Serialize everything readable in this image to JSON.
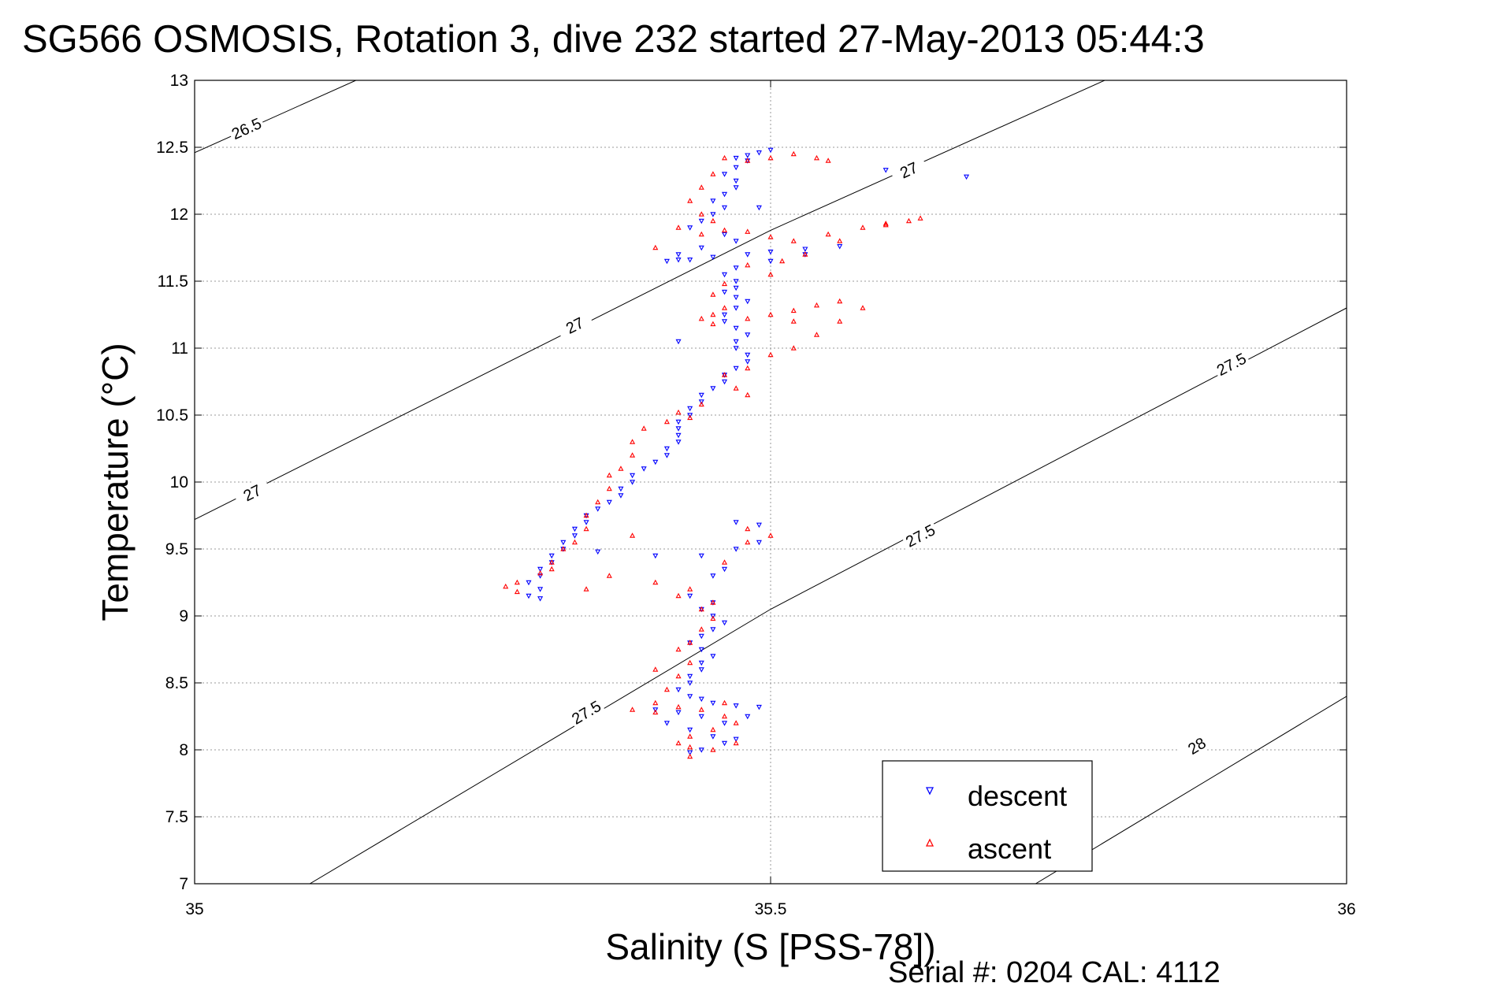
{
  "chart_data": {
    "type": "scatter",
    "title": "SG566 OSMOSIS, Rotation 3, dive 232 started 27-May-2013 05:44:3",
    "xlabel": "Salinity (S [PSS-78])",
    "ylabel": "Temperature (°C)",
    "xlim": [
      35,
      36
    ],
    "ylim": [
      7,
      13
    ],
    "x_ticks": [
      "35",
      "35.5",
      "36"
    ],
    "y_ticks": [
      "7",
      "7.5",
      "8",
      "8.5",
      "9",
      "9.5",
      "10",
      "10.5",
      "11",
      "11.5",
      "12",
      "12.5",
      "13"
    ],
    "grid": true,
    "legend_position": "bottom-right",
    "footer": "Serial #: 0204  CAL: 4112",
    "density_contours": [
      {
        "level": "26.5",
        "points": [
          [
            35.0,
            12.46
          ],
          [
            35.14,
            13.0
          ]
        ],
        "labels": [
          [
            35.045,
            12.64
          ]
        ]
      },
      {
        "level": "27",
        "points": [
          [
            35.0,
            9.72
          ],
          [
            35.5,
            11.88
          ],
          [
            35.79,
            13.0
          ]
        ],
        "labels": [
          [
            35.05,
            9.92
          ],
          [
            35.33,
            11.17
          ],
          [
            35.62,
            12.33
          ]
        ]
      },
      {
        "level": "27.5",
        "points": [
          [
            35.1,
            7.0
          ],
          [
            35.5,
            9.05
          ],
          [
            36.0,
            11.3
          ]
        ],
        "labels": [
          [
            35.34,
            8.28
          ],
          [
            35.63,
            9.6
          ],
          [
            35.9,
            10.88
          ]
        ]
      },
      {
        "level": "28",
        "points": [
          [
            35.73,
            7.0
          ],
          [
            36.0,
            8.4
          ]
        ],
        "labels": [
          [
            35.87,
            8.03
          ]
        ]
      }
    ],
    "series": [
      {
        "name": "descent",
        "marker": "triangle-down",
        "color": "#0000ff",
        "points": [
          [
            35.5,
            12.48
          ],
          [
            35.49,
            12.46
          ],
          [
            35.48,
            12.44
          ],
          [
            35.48,
            12.4
          ],
          [
            35.47,
            12.35
          ],
          [
            35.46,
            12.3
          ],
          [
            35.47,
            12.25
          ],
          [
            35.47,
            12.2
          ],
          [
            35.46,
            12.15
          ],
          [
            35.45,
            12.1
          ],
          [
            35.46,
            12.05
          ],
          [
            35.45,
            12.0
          ],
          [
            35.44,
            11.95
          ],
          [
            35.43,
            11.9
          ],
          [
            35.46,
            11.85
          ],
          [
            35.47,
            11.8
          ],
          [
            35.44,
            11.75
          ],
          [
            35.42,
            11.7
          ],
          [
            35.42,
            11.66
          ],
          [
            35.41,
            11.65
          ],
          [
            35.43,
            11.66
          ],
          [
            35.45,
            11.68
          ],
          [
            35.48,
            11.7
          ],
          [
            35.5,
            11.72
          ],
          [
            35.53,
            11.74
          ],
          [
            35.56,
            11.76
          ],
          [
            35.53,
            11.7
          ],
          [
            35.5,
            11.65
          ],
          [
            35.47,
            11.6
          ],
          [
            35.47,
            11.5
          ],
          [
            35.47,
            11.45
          ],
          [
            35.46,
            11.42
          ],
          [
            35.47,
            11.38
          ],
          [
            35.48,
            11.35
          ],
          [
            35.47,
            11.3
          ],
          [
            35.46,
            11.25
          ],
          [
            35.46,
            11.2
          ],
          [
            35.47,
            11.15
          ],
          [
            35.48,
            11.1
          ],
          [
            35.47,
            11.05
          ],
          [
            35.47,
            11.0
          ],
          [
            35.48,
            10.95
          ],
          [
            35.48,
            10.9
          ],
          [
            35.47,
            10.85
          ],
          [
            35.46,
            10.8
          ],
          [
            35.46,
            10.75
          ],
          [
            35.45,
            10.7
          ],
          [
            35.44,
            10.65
          ],
          [
            35.44,
            10.6
          ],
          [
            35.43,
            10.55
          ],
          [
            35.43,
            10.5
          ],
          [
            35.42,
            10.45
          ],
          [
            35.42,
            10.4
          ],
          [
            35.42,
            10.35
          ],
          [
            35.42,
            10.3
          ],
          [
            35.41,
            10.25
          ],
          [
            35.41,
            10.2
          ],
          [
            35.4,
            10.15
          ],
          [
            35.39,
            10.1
          ],
          [
            35.38,
            10.05
          ],
          [
            35.38,
            10.0
          ],
          [
            35.37,
            9.95
          ],
          [
            35.37,
            9.9
          ],
          [
            35.36,
            9.85
          ],
          [
            35.35,
            9.8
          ],
          [
            35.34,
            9.75
          ],
          [
            35.34,
            9.7
          ],
          [
            35.33,
            9.65
          ],
          [
            35.33,
            9.6
          ],
          [
            35.32,
            9.55
          ],
          [
            35.32,
            9.5
          ],
          [
            35.31,
            9.45
          ],
          [
            35.31,
            9.4
          ],
          [
            35.3,
            9.35
          ],
          [
            35.3,
            9.3
          ],
          [
            35.29,
            9.25
          ],
          [
            35.3,
            9.2
          ],
          [
            35.29,
            9.15
          ],
          [
            35.3,
            9.13
          ],
          [
            35.35,
            9.48
          ],
          [
            35.4,
            9.45
          ],
          [
            35.44,
            9.45
          ],
          [
            35.47,
            9.5
          ],
          [
            35.49,
            9.55
          ],
          [
            35.47,
            9.7
          ],
          [
            35.49,
            9.68
          ],
          [
            35.46,
            9.35
          ],
          [
            35.45,
            9.3
          ],
          [
            35.43,
            9.15
          ],
          [
            35.45,
            9.1
          ],
          [
            35.44,
            9.05
          ],
          [
            35.45,
            9.0
          ],
          [
            35.46,
            8.95
          ],
          [
            35.45,
            8.9
          ],
          [
            35.44,
            8.85
          ],
          [
            35.43,
            8.8
          ],
          [
            35.44,
            8.75
          ],
          [
            35.45,
            8.7
          ],
          [
            35.44,
            8.65
          ],
          [
            35.44,
            8.6
          ],
          [
            35.43,
            8.55
          ],
          [
            35.43,
            8.5
          ],
          [
            35.42,
            8.45
          ],
          [
            35.43,
            8.4
          ],
          [
            35.44,
            8.38
          ],
          [
            35.45,
            8.35
          ],
          [
            35.47,
            8.33
          ],
          [
            35.49,
            8.32
          ],
          [
            35.48,
            8.25
          ],
          [
            35.46,
            8.2
          ],
          [
            35.44,
            8.25
          ],
          [
            35.42,
            8.28
          ],
          [
            35.4,
            8.3
          ],
          [
            35.41,
            8.2
          ],
          [
            35.43,
            8.15
          ],
          [
            35.45,
            8.1
          ],
          [
            35.47,
            8.08
          ],
          [
            35.46,
            8.05
          ],
          [
            35.44,
            8.0
          ],
          [
            35.43,
            7.98
          ],
          [
            35.67,
            12.28
          ],
          [
            35.42,
            11.05
          ],
          [
            35.6,
            12.33
          ],
          [
            35.49,
            12.05
          ],
          [
            35.47,
            12.42
          ],
          [
            35.46,
            11.55
          ]
        ]
      },
      {
        "name": "ascent",
        "marker": "triangle-up",
        "color": "#ff0000",
        "points": [
          [
            35.46,
            12.42
          ],
          [
            35.48,
            12.4
          ],
          [
            35.5,
            12.42
          ],
          [
            35.54,
            12.42
          ],
          [
            35.45,
            12.3
          ],
          [
            35.44,
            12.2
          ],
          [
            35.43,
            12.1
          ],
          [
            35.44,
            12.0
          ],
          [
            35.45,
            11.95
          ],
          [
            35.42,
            11.9
          ],
          [
            35.44,
            11.85
          ],
          [
            35.46,
            11.88
          ],
          [
            35.48,
            11.87
          ],
          [
            35.5,
            11.83
          ],
          [
            35.52,
            11.8
          ],
          [
            35.55,
            11.85
          ],
          [
            35.58,
            11.9
          ],
          [
            35.6,
            11.93
          ],
          [
            35.62,
            11.95
          ],
          [
            35.63,
            11.97
          ],
          [
            35.6,
            11.92
          ],
          [
            35.56,
            11.8
          ],
          [
            35.53,
            11.7
          ],
          [
            35.51,
            11.65
          ],
          [
            35.48,
            11.62
          ],
          [
            35.46,
            11.48
          ],
          [
            35.45,
            11.4
          ],
          [
            35.46,
            11.3
          ],
          [
            35.45,
            11.25
          ],
          [
            35.44,
            11.22
          ],
          [
            35.45,
            11.18
          ],
          [
            35.48,
            11.22
          ],
          [
            35.5,
            11.25
          ],
          [
            35.52,
            11.28
          ],
          [
            35.54,
            11.32
          ],
          [
            35.56,
            11.35
          ],
          [
            35.58,
            11.3
          ],
          [
            35.56,
            11.2
          ],
          [
            35.54,
            11.1
          ],
          [
            35.52,
            11.0
          ],
          [
            35.5,
            10.95
          ],
          [
            35.48,
            10.85
          ],
          [
            35.46,
            10.8
          ],
          [
            35.47,
            10.7
          ],
          [
            35.48,
            10.65
          ],
          [
            35.44,
            10.58
          ],
          [
            35.42,
            10.52
          ],
          [
            35.43,
            10.48
          ],
          [
            35.41,
            10.45
          ],
          [
            35.39,
            10.4
          ],
          [
            35.38,
            10.3
          ],
          [
            35.38,
            10.2
          ],
          [
            35.37,
            10.1
          ],
          [
            35.36,
            10.05
          ],
          [
            35.36,
            9.95
          ],
          [
            35.35,
            9.85
          ],
          [
            35.34,
            9.75
          ],
          [
            35.34,
            9.65
          ],
          [
            35.33,
            9.55
          ],
          [
            35.32,
            9.5
          ],
          [
            35.31,
            9.4
          ],
          [
            35.3,
            9.32
          ],
          [
            35.28,
            9.25
          ],
          [
            35.27,
            9.22
          ],
          [
            35.28,
            9.18
          ],
          [
            35.31,
            9.35
          ],
          [
            35.36,
            9.3
          ],
          [
            35.4,
            9.25
          ],
          [
            35.43,
            9.2
          ],
          [
            35.46,
            9.4
          ],
          [
            35.48,
            9.55
          ],
          [
            35.5,
            9.6
          ],
          [
            35.42,
            9.15
          ],
          [
            35.45,
            9.1
          ],
          [
            35.44,
            9.05
          ],
          [
            35.45,
            8.98
          ],
          [
            35.44,
            8.9
          ],
          [
            35.43,
            8.8
          ],
          [
            35.42,
            8.75
          ],
          [
            35.43,
            8.65
          ],
          [
            35.42,
            8.55
          ],
          [
            35.41,
            8.45
          ],
          [
            35.4,
            8.35
          ],
          [
            35.38,
            8.3
          ],
          [
            35.4,
            8.28
          ],
          [
            35.42,
            8.32
          ],
          [
            35.44,
            8.3
          ],
          [
            35.46,
            8.25
          ],
          [
            35.47,
            8.2
          ],
          [
            35.45,
            8.15
          ],
          [
            35.43,
            8.1
          ],
          [
            35.42,
            8.05
          ],
          [
            35.43,
            8.02
          ],
          [
            35.45,
            8.0
          ],
          [
            35.47,
            8.05
          ],
          [
            35.43,
            7.95
          ],
          [
            35.52,
            12.45
          ],
          [
            35.55,
            12.4
          ],
          [
            35.4,
            11.75
          ],
          [
            35.5,
            11.55
          ],
          [
            35.52,
            11.2
          ],
          [
            35.38,
            9.6
          ],
          [
            35.34,
            9.2
          ],
          [
            35.48,
            9.65
          ],
          [
            35.4,
            8.6
          ],
          [
            35.46,
            8.35
          ]
        ]
      }
    ]
  }
}
